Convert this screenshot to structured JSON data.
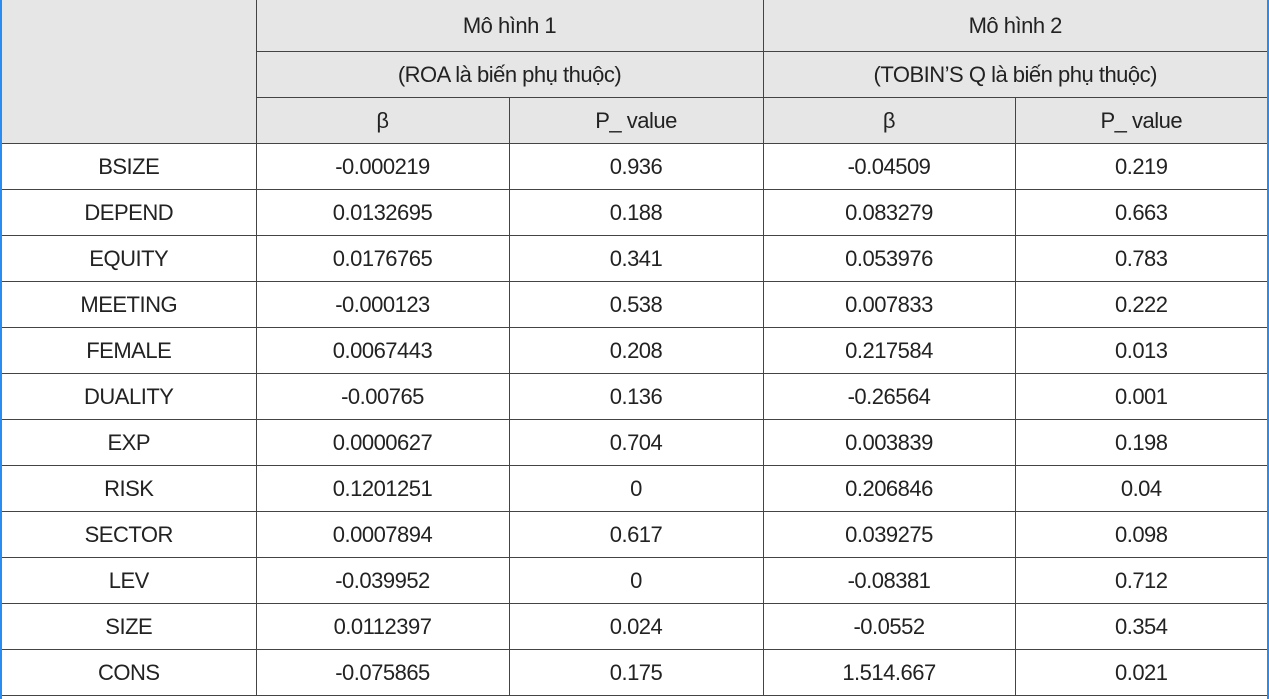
{
  "table": {
    "header": [
      [
        "Mô hình 1",
        "Mô hình 2"
      ],
      [
        "(ROA là biến phụ thuộc)",
        "(TOBIN’S Q là biến phụ thuộc)"
      ],
      [
        "β",
        "P_ value",
        "β",
        "P_ value"
      ]
    ],
    "rows": [
      [
        "BSIZE",
        "-0.000219",
        "0.936",
        "-0.04509",
        "0.219"
      ],
      [
        "DEPEND",
        "0.0132695",
        "0.188",
        "0.083279",
        "0.663"
      ],
      [
        "EQUITY",
        "0.0176765",
        "0.341",
        "0.053976",
        "0.783"
      ],
      [
        "MEETING",
        "-0.000123",
        "0.538",
        "0.007833",
        "0.222"
      ],
      [
        "FEMALE",
        "0.0067443",
        "0.208",
        "0.217584",
        "0.013"
      ],
      [
        "DUALITY",
        "-0.00765",
        "0.136",
        "-0.26564",
        "0.001"
      ],
      [
        "EXP",
        "0.0000627",
        "0.704",
        "0.003839",
        "0.198"
      ],
      [
        "RISK",
        "0.1201251",
        "0",
        "0.206846",
        "0.04"
      ],
      [
        "SECTOR",
        "0.0007894",
        "0.617",
        "0.039275",
        "0.098"
      ],
      [
        "LEV",
        "-0.039952",
        "0",
        "-0.08381",
        "0.712"
      ],
      [
        "SIZE",
        "0.0112397",
        "0.024",
        "-0.0552",
        "0.354"
      ],
      [
        "CONS",
        "-0.075865",
        "0.175",
        "1.514.667",
        "0.021"
      ]
    ]
  }
}
